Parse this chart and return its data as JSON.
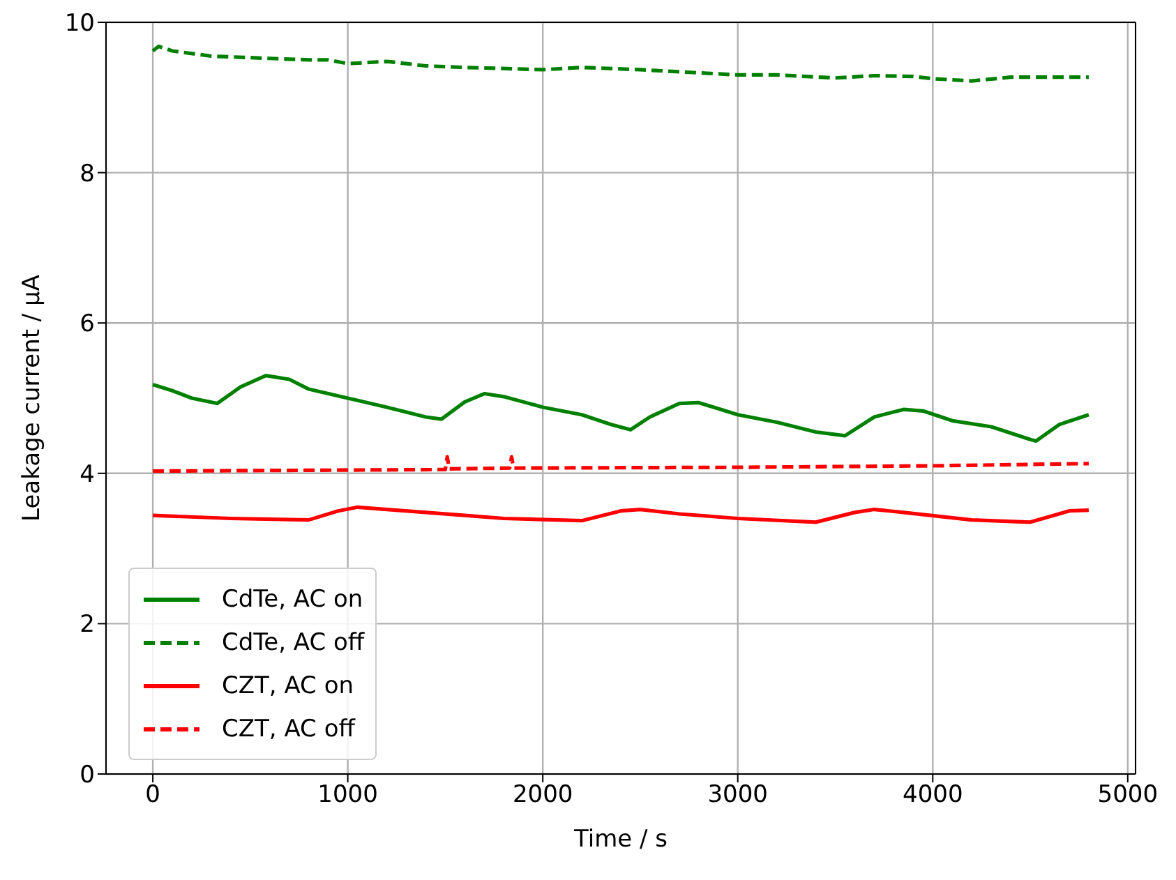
{
  "chart_data": {
    "type": "line",
    "xlabel": "Time / s",
    "ylabel": "Leakage current / μA",
    "xlim": [
      -240,
      5040
    ],
    "xticks": [
      0,
      1000,
      2000,
      3000,
      4000,
      5000
    ],
    "ylim": [
      0,
      10
    ],
    "yticks": [
      0,
      2,
      4,
      6,
      8,
      10
    ],
    "grid": true,
    "legend": "bottom left",
    "marker": "none",
    "series": [
      {
        "name": "CdTe, AC on",
        "color": "#008000",
        "line_style": "solid",
        "x": [
          0,
          100,
          200,
          330,
          450,
          580,
          700,
          800,
          1000,
          1200,
          1400,
          1480,
          1600,
          1700,
          1800,
          2000,
          2200,
          2350,
          2450,
          2550,
          2700,
          2800,
          3000,
          3200,
          3400,
          3550,
          3700,
          3850,
          3950,
          4100,
          4300,
          4500,
          4530,
          4650,
          4800
        ],
        "values": [
          5.18,
          5.1,
          5.0,
          4.93,
          5.15,
          5.3,
          5.25,
          5.12,
          5.0,
          4.88,
          4.75,
          4.72,
          4.95,
          5.06,
          5.02,
          4.88,
          4.78,
          4.65,
          4.58,
          4.75,
          4.93,
          4.94,
          4.78,
          4.68,
          4.55,
          4.5,
          4.75,
          4.85,
          4.83,
          4.7,
          4.62,
          4.45,
          4.43,
          4.65,
          4.78
        ]
      },
      {
        "name": "CdTe, AC off",
        "color": "#008000",
        "line_style": "dashed",
        "x": [
          0,
          30,
          100,
          300,
          600,
          800,
          900,
          1000,
          1200,
          1400,
          1600,
          2000,
          2200,
          2500,
          3000,
          3200,
          3500,
          3700,
          3900,
          4000,
          4200,
          4400,
          4800
        ],
        "values": [
          9.62,
          9.68,
          9.62,
          9.55,
          9.52,
          9.5,
          9.5,
          9.45,
          9.48,
          9.42,
          9.4,
          9.37,
          9.4,
          9.37,
          9.3,
          9.3,
          9.26,
          9.29,
          9.28,
          9.25,
          9.22,
          9.27,
          9.27
        ]
      },
      {
        "name": "CZT, AC on",
        "color": "#ff0000",
        "line_style": "solid",
        "x": [
          0,
          400,
          800,
          950,
          1050,
          1200,
          1600,
          1800,
          2200,
          2400,
          2500,
          2700,
          3000,
          3400,
          3600,
          3700,
          3850,
          4200,
          4500,
          4700,
          4800
        ],
        "values": [
          3.44,
          3.4,
          3.38,
          3.5,
          3.55,
          3.52,
          3.44,
          3.4,
          3.37,
          3.5,
          3.52,
          3.46,
          3.4,
          3.35,
          3.48,
          3.52,
          3.48,
          3.38,
          3.35,
          3.5,
          3.51
        ]
      },
      {
        "name": "CZT, AC off",
        "color": "#ff0000",
        "line_style": "dashed",
        "x": [
          0,
          1500,
          1510,
          1520,
          1830,
          1840,
          1850,
          3000,
          4000,
          4800
        ],
        "values": [
          4.03,
          4.05,
          4.22,
          4.06,
          4.07,
          4.22,
          4.07,
          4.08,
          4.1,
          4.13
        ]
      }
    ]
  }
}
